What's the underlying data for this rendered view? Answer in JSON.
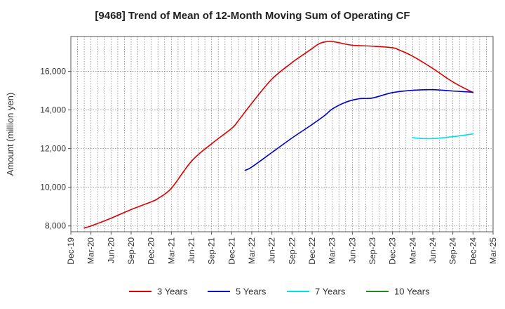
{
  "chart_data": {
    "type": "line",
    "title": "[9468]  Trend of Mean of 12-Month Moving Sum of Operating CF",
    "xlabel": "",
    "ylabel": "Amount (million yen)",
    "ylim": [
      7700,
      17800
    ],
    "yticks": [
      8000,
      10000,
      12000,
      14000,
      16000
    ],
    "ytick_labels": [
      "8,000",
      "10,000",
      "12,000",
      "14,000",
      "16,000"
    ],
    "xlim": [
      0,
      63
    ],
    "xticks": [
      0,
      3,
      6,
      9,
      12,
      15,
      18,
      21,
      24,
      27,
      30,
      33,
      36,
      39,
      42,
      45,
      48,
      51,
      54,
      57,
      60,
      63
    ],
    "xtick_labels": [
      "Dec-19",
      "Mar-20",
      "Jun-20",
      "Sep-20",
      "Dec-20",
      "Mar-21",
      "Jun-21",
      "Sep-21",
      "Dec-21",
      "Mar-22",
      "Jun-22",
      "Sep-22",
      "Dec-22",
      "Mar-23",
      "Jun-23",
      "Sep-23",
      "Dec-23",
      "Mar-24",
      "Jun-24",
      "Sep-24",
      "Dec-24",
      "Mar-25"
    ],
    "grid": true,
    "legend_position": "bottom",
    "series": [
      {
        "name": "3 Years",
        "color": "#dd0000",
        "x": [
          2,
          3,
          6,
          9,
          12,
          13,
          15,
          18,
          21,
          24,
          25,
          27,
          30,
          33,
          34,
          36,
          37,
          38,
          39,
          40,
          42,
          45,
          48,
          49,
          51,
          54,
          57,
          60
        ],
        "y": [
          7900,
          8000,
          8400,
          8850,
          9250,
          9420,
          9950,
          11350,
          12250,
          13050,
          13450,
          14350,
          15600,
          16450,
          16700,
          17180,
          17420,
          17530,
          17540,
          17480,
          17350,
          17300,
          17220,
          17100,
          16780,
          16150,
          15450,
          14900
        ]
      },
      {
        "name": "5 Years",
        "color": "#0000cc",
        "x": [
          26,
          27,
          30,
          33,
          36,
          38,
          39,
          41,
          43,
          45,
          48,
          51,
          54,
          57,
          60
        ],
        "y": [
          10880,
          11050,
          11800,
          12550,
          13250,
          13750,
          14050,
          14400,
          14580,
          14620,
          14900,
          15020,
          15050,
          14980,
          14920
        ]
      },
      {
        "name": "7 Years",
        "color": "#00e0e8",
        "x": [
          51,
          52,
          54,
          57,
          60
        ],
        "y": [
          12580,
          12530,
          12520,
          12620,
          12760
        ]
      },
      {
        "name": "10 Years",
        "color": "#228822",
        "x": [],
        "y": []
      }
    ]
  }
}
